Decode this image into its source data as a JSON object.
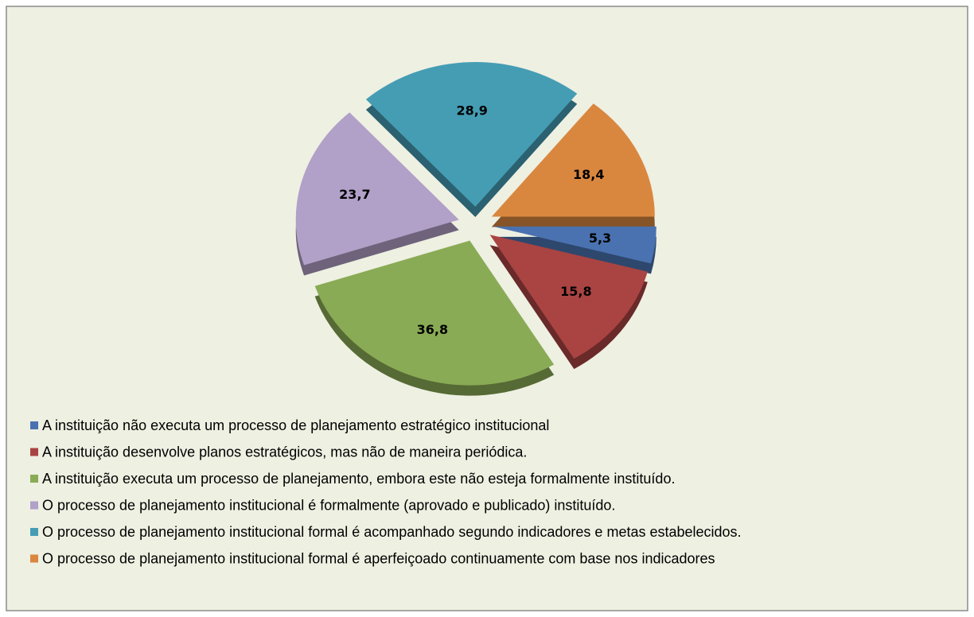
{
  "chart_data": {
    "type": "pie",
    "categories": [
      "A instituição não executa um processo de planejamento estratégico institucional",
      "A instituição desenvolve planos estratégicos, mas não de maneira periódica.",
      "A instituição executa um processo de planejamento, embora este não esteja formalmente instituído.",
      "O processo de planejamento institucional é formalmente (aprovado e publicado) instituído.",
      "O processo de planejamento institucional formal é acompanhado segundo indicadores e metas estabelecidos.",
      "O processo de planejamento institucional formal é aperfeiçoado continuamente com base nos indicadores"
    ],
    "values": [
      5.3,
      15.8,
      36.8,
      23.7,
      28.9,
      18.4
    ],
    "value_labels": [
      "5,3",
      "15,8",
      "36,8",
      "23,7",
      "28,9",
      "18,4"
    ],
    "colors": [
      "#4a72b0",
      "#a94442",
      "#8aab55",
      "#b1a0c7",
      "#459db4",
      "#d9873f"
    ]
  }
}
